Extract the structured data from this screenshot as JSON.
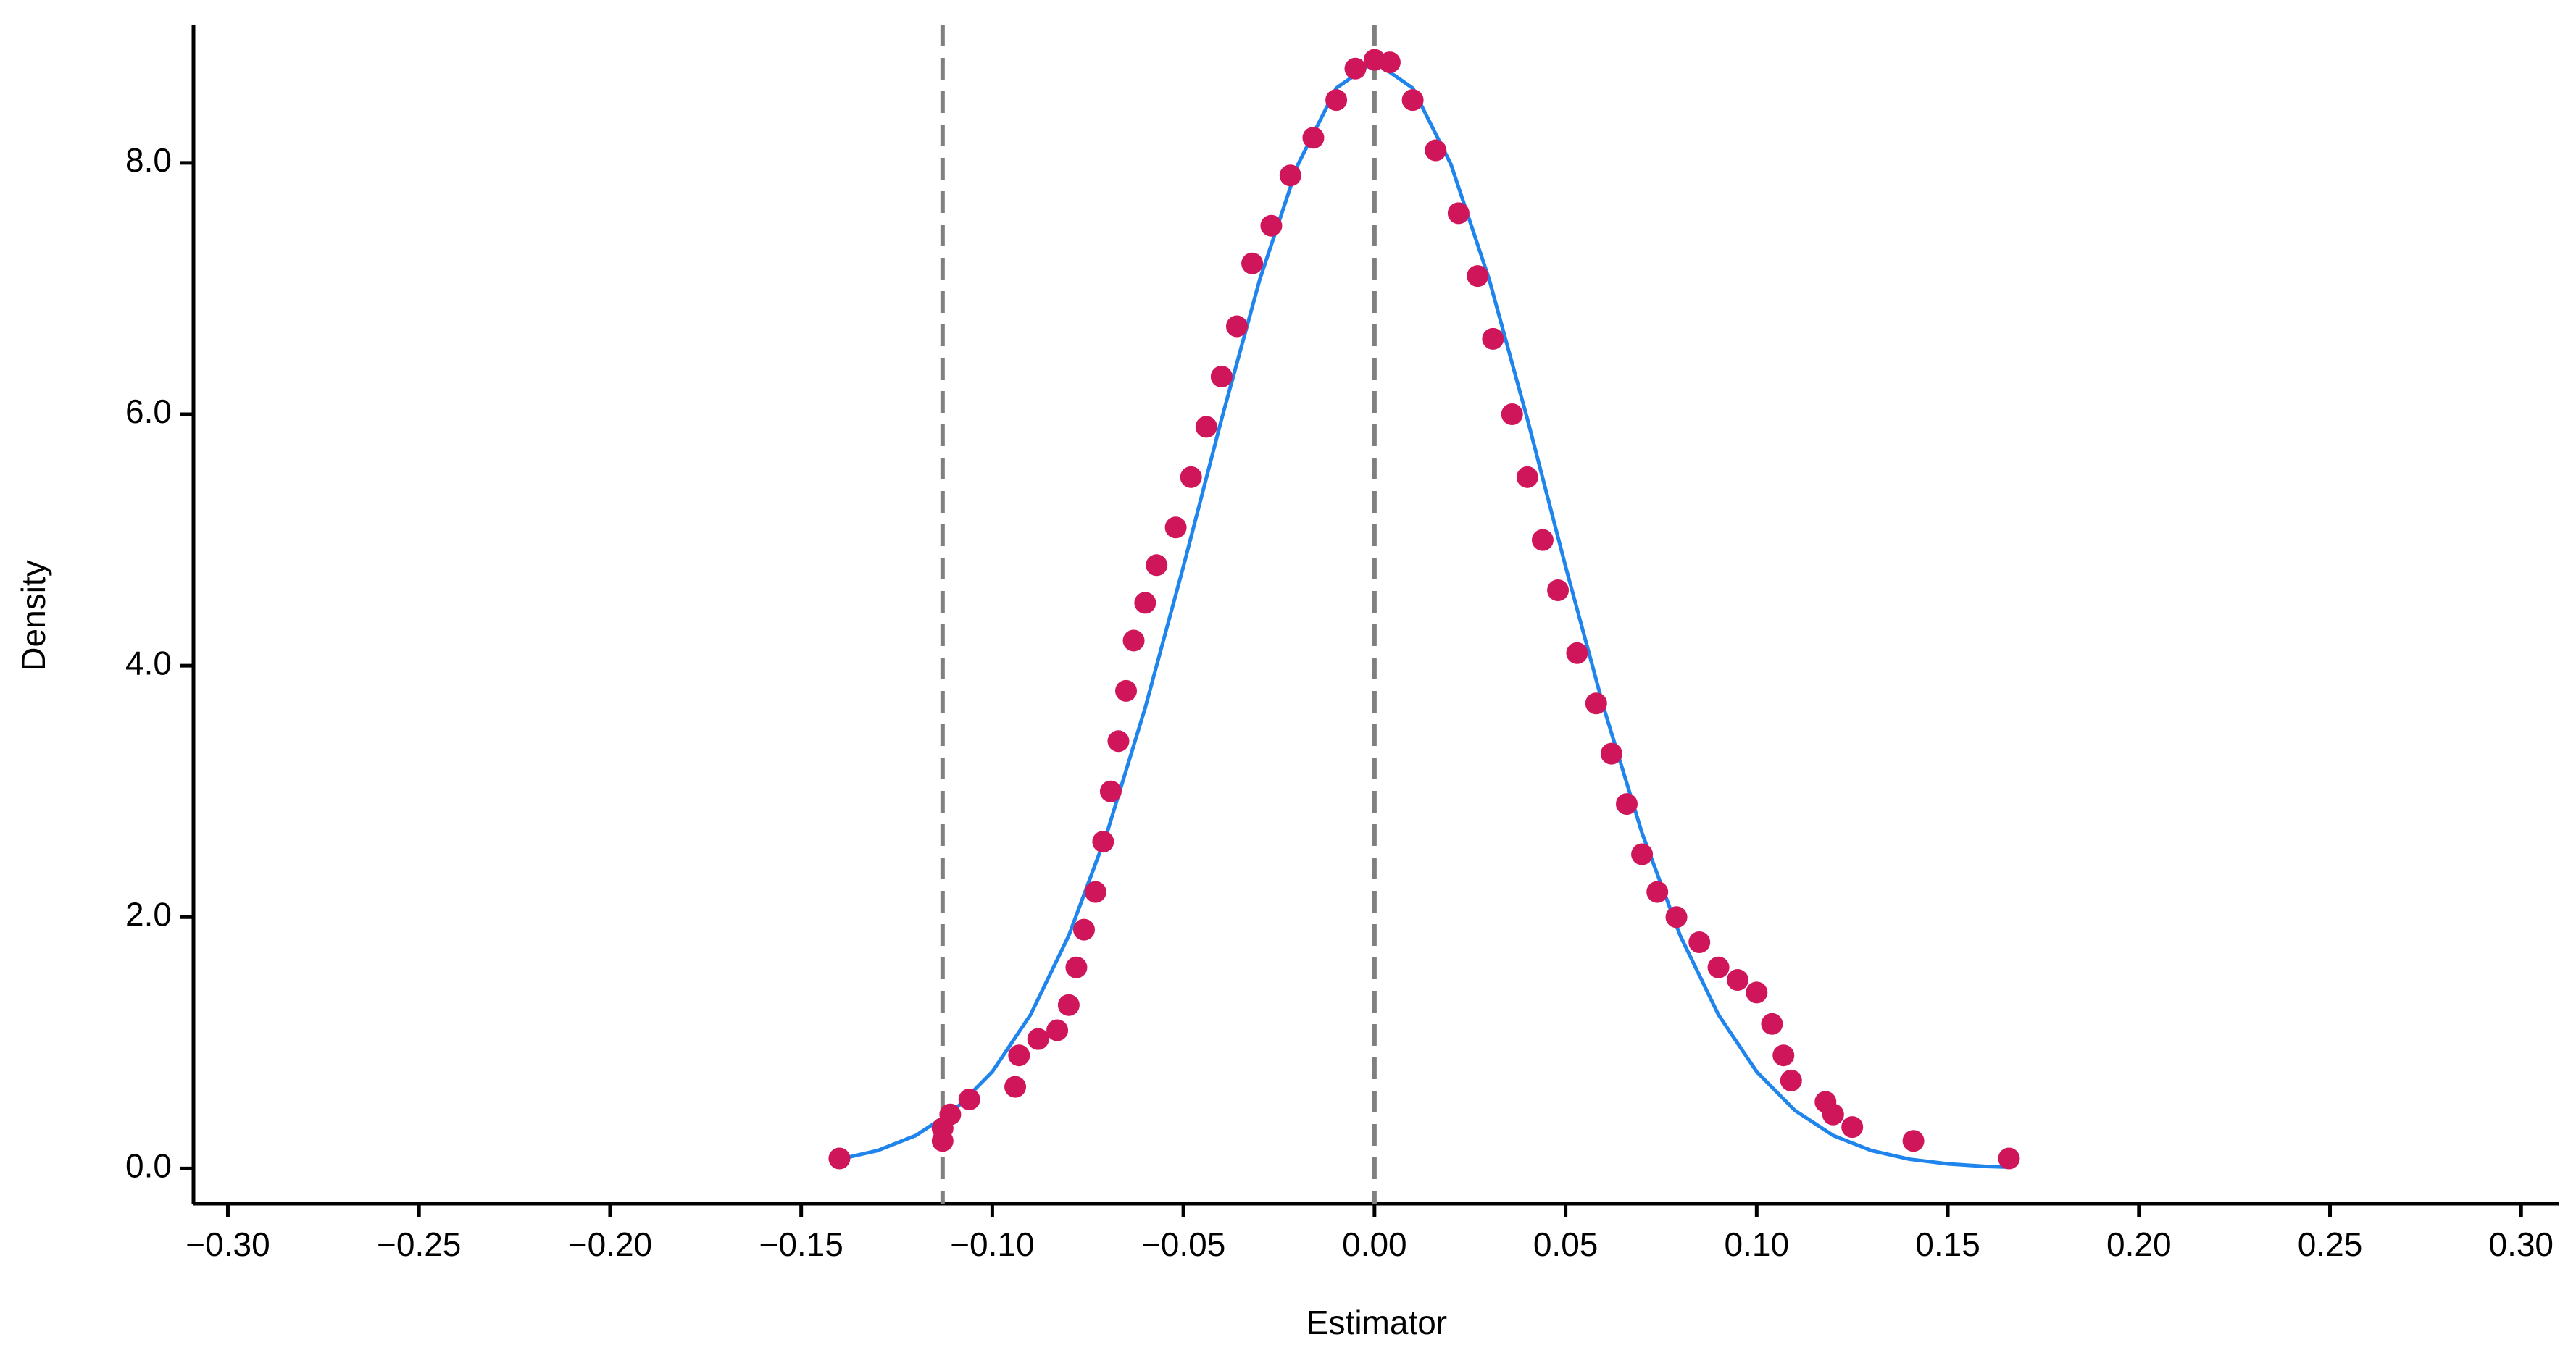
{
  "chart_data": {
    "type": "scatter",
    "x_label": "Estimator",
    "y_label": "Density",
    "xlim": [
      -0.309,
      0.31
    ],
    "ylim": [
      -0.28,
      9.1
    ],
    "xticks": [
      {
        "value": -0.3,
        "label": "−0.30"
      },
      {
        "value": -0.25,
        "label": "−0.25"
      },
      {
        "value": -0.2,
        "label": "−0.20"
      },
      {
        "value": -0.15,
        "label": "−0.15"
      },
      {
        "value": -0.1,
        "label": "−0.10"
      },
      {
        "value": -0.05,
        "label": "−0.05"
      },
      {
        "value": 0,
        "label": "0.00"
      },
      {
        "value": 0.05,
        "label": "0.05"
      },
      {
        "value": 0.1,
        "label": "0.10"
      },
      {
        "value": 0.15,
        "label": "0.15"
      },
      {
        "value": 0.2,
        "label": "0.20"
      },
      {
        "value": 0.25,
        "label": "0.25"
      },
      {
        "value": 0.3,
        "label": "0.30"
      }
    ],
    "yticks": [
      {
        "value": 0,
        "label": "0.0"
      },
      {
        "value": 2,
        "label": "2.0"
      },
      {
        "value": 4,
        "label": "4.0"
      },
      {
        "value": 6,
        "label": "6.0"
      },
      {
        "value": 8,
        "label": "8.0"
      }
    ],
    "vlines": [
      -0.113,
      0
    ],
    "vline_color": "#808080",
    "series": [
      {
        "type": "line",
        "color": "#1f85ec",
        "x": [
          -0.14,
          -0.13,
          -0.12,
          -0.11,
          -0.1,
          -0.09,
          -0.08,
          -0.07,
          -0.06,
          -0.05,
          -0.04,
          -0.03,
          -0.02,
          -0.01,
          0,
          0.01,
          0.02,
          0.03,
          0.04,
          0.05,
          0.06,
          0.07,
          0.08,
          0.09,
          0.1,
          0.11,
          0.12,
          0.13,
          0.14,
          0.15,
          0.16,
          0.166
        ],
        "values": [
          0.074,
          0.143,
          0.263,
          0.462,
          0.77,
          1.223,
          1.852,
          2.669,
          3.664,
          4.789,
          5.963,
          7.074,
          7.989,
          8.595,
          8.807,
          8.595,
          7.989,
          7.074,
          5.963,
          4.789,
          3.664,
          2.669,
          1.852,
          1.223,
          0.77,
          0.462,
          0.263,
          0.143,
          0.074,
          0.037,
          0.017,
          0.011
        ]
      },
      {
        "type": "scatter",
        "color": "#d0165a",
        "x": [
          -0.14,
          -0.113,
          -0.113,
          -0.111,
          -0.106,
          -0.094,
          -0.093,
          -0.088,
          -0.083,
          -0.08,
          -0.078,
          -0.076,
          -0.073,
          -0.071,
          -0.069,
          -0.067,
          -0.065,
          -0.063,
          -0.06,
          -0.057,
          -0.052,
          -0.048,
          -0.044,
          -0.04,
          -0.036,
          -0.032,
          -0.027,
          -0.022,
          -0.016,
          -0.01,
          -0.005,
          0,
          0.004,
          0.01,
          0.016,
          0.022,
          0.027,
          0.031,
          0.036,
          0.04,
          0.044,
          0.048,
          0.053,
          0.058,
          0.062,
          0.066,
          0.07,
          0.074,
          0.079,
          0.085,
          0.09,
          0.095,
          0.1,
          0.104,
          0.107,
          0.109,
          0.118,
          0.12,
          0.125,
          0.141,
          0.166
        ],
        "values": [
          0.08,
          0.22,
          0.32,
          0.43,
          0.55,
          0.65,
          0.9,
          1.03,
          1.1,
          1.3,
          1.6,
          1.9,
          2.2,
          2.6,
          3.0,
          3.4,
          3.8,
          4.2,
          4.5,
          4.8,
          5.1,
          5.5,
          5.9,
          6.3,
          6.7,
          7.2,
          7.5,
          7.9,
          8.2,
          8.5,
          8.75,
          8.82,
          8.8,
          8.5,
          8.1,
          7.6,
          7.1,
          6.6,
          6.0,
          5.5,
          5.0,
          4.6,
          4.1,
          3.7,
          3.3,
          2.9,
          2.5,
          2.2,
          2.0,
          1.8,
          1.6,
          1.5,
          1.4,
          1.15,
          0.9,
          0.7,
          0.53,
          0.43,
          0.33,
          0.22,
          0.08
        ]
      }
    ]
  }
}
